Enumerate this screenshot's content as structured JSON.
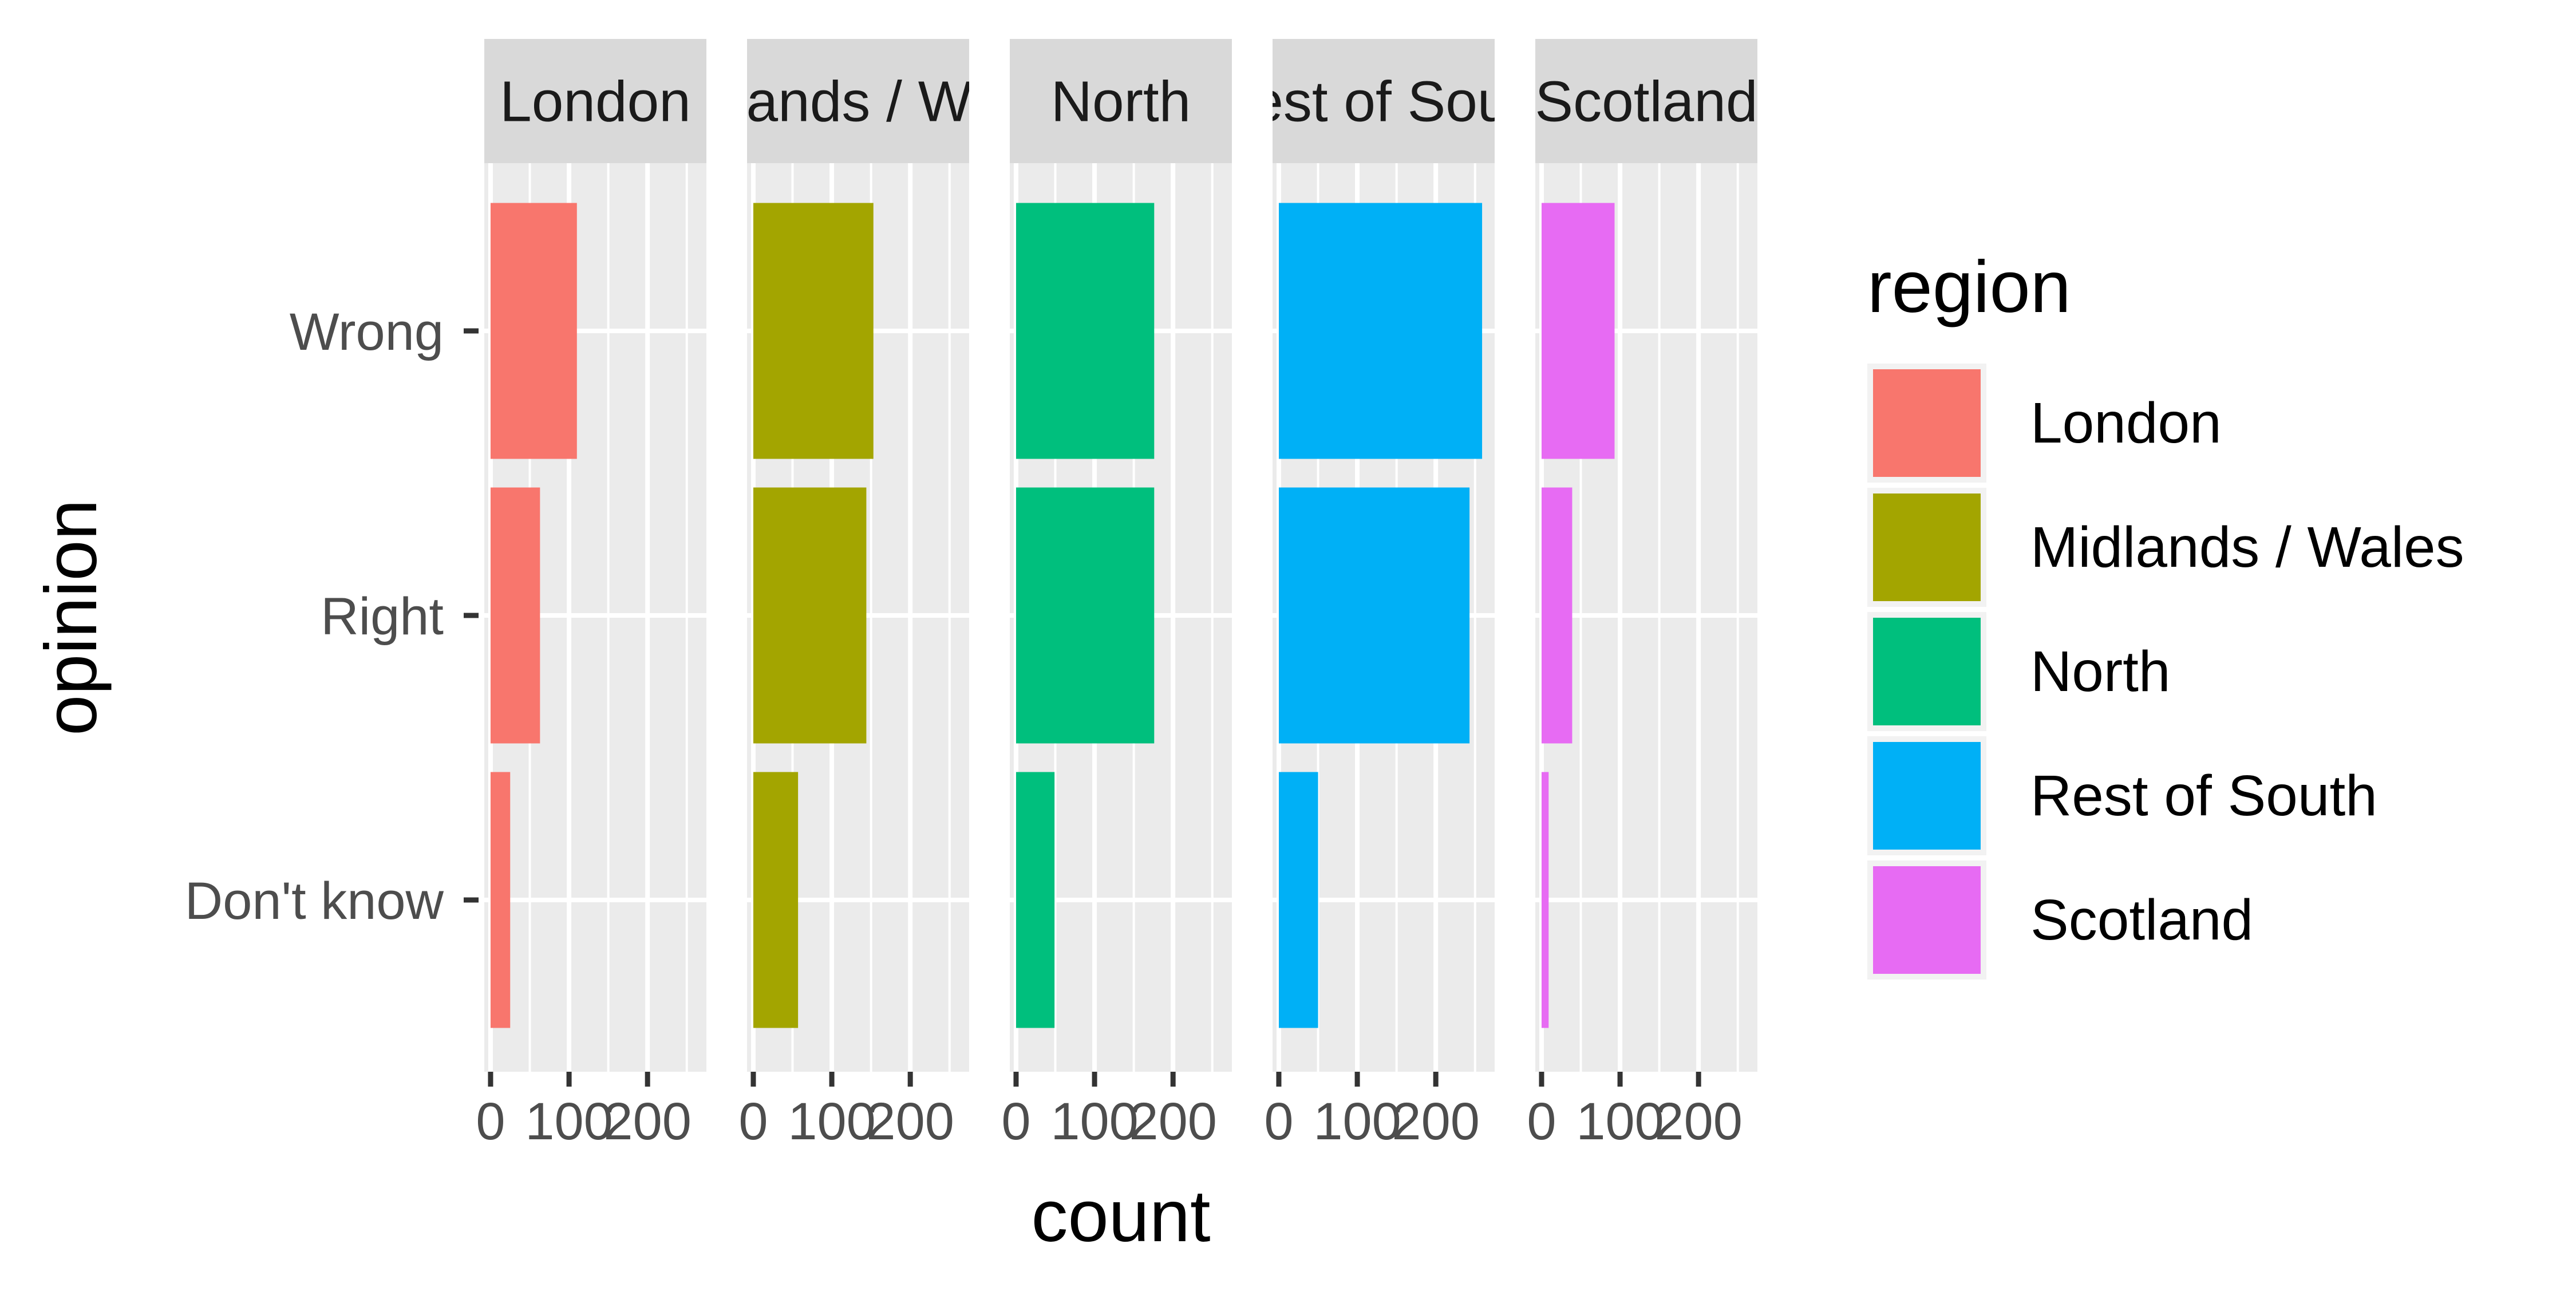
{
  "chart_data": {
    "type": "bar",
    "orientation": "horizontal",
    "facet_by": "region",
    "x_label": "count",
    "y_label": "opinion",
    "xlim": [
      -8,
      275
    ],
    "x_ticks": [
      0,
      100,
      200
    ],
    "x_tick_labels": [
      "0",
      "100",
      "200"
    ],
    "categories": [
      "Wrong",
      "Right",
      "Don't know"
    ],
    "grid": true,
    "legend": {
      "title": "region",
      "position": "right"
    },
    "series": [
      {
        "name": "London",
        "strip_label": "London",
        "color": "#F8766D",
        "values": [
          110,
          63,
          25
        ]
      },
      {
        "name": "Midlands / Wales",
        "strip_label": "Midlands / Wales",
        "color": "#A3A500",
        "values": [
          153,
          144,
          57
        ]
      },
      {
        "name": "North",
        "strip_label": "North",
        "color": "#00BF7D",
        "values": [
          176,
          176,
          49
        ]
      },
      {
        "name": "Rest of South",
        "strip_label": "Rest of South",
        "color": "#00B0F6",
        "values": [
          259,
          243,
          50
        ]
      },
      {
        "name": "Scotland",
        "strip_label": "Scotland",
        "color": "#E76BF3",
        "values": [
          93,
          39,
          9
        ]
      }
    ]
  }
}
